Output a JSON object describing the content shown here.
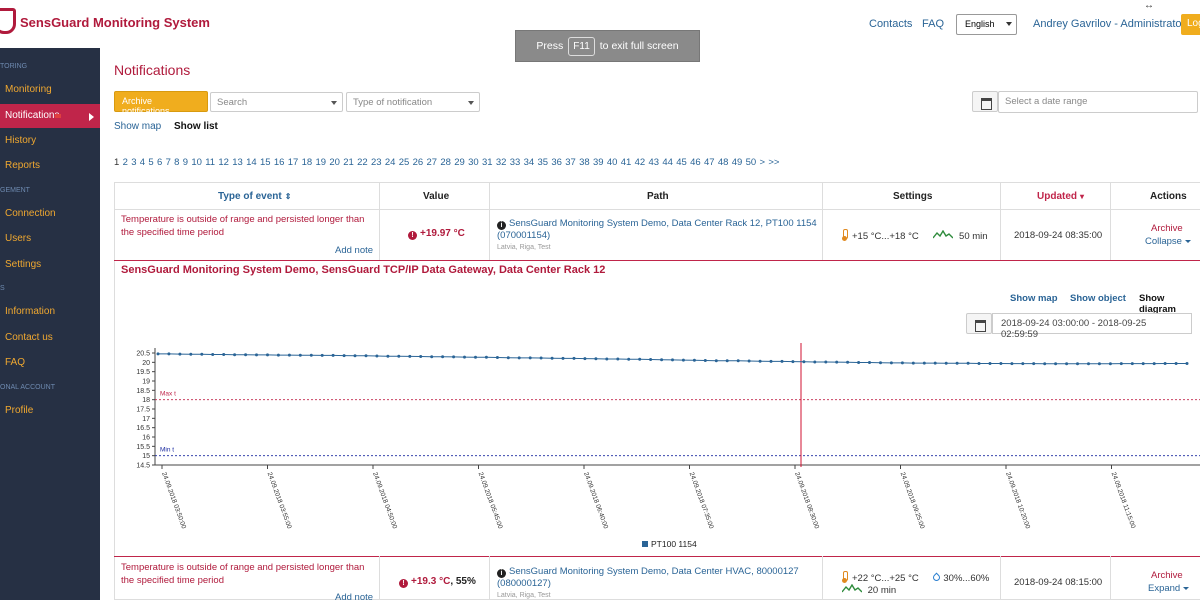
{
  "header": {
    "brand": "SensGuard Monitoring System",
    "contacts": "Contacts",
    "faq": "FAQ",
    "language": "English",
    "user": "Andrey Gavrilov - Administrator",
    "logout": "Log"
  },
  "fullscreen_toast": {
    "press": "Press",
    "key": "F11",
    "rest": "to exit full screen"
  },
  "sidebar": {
    "sections": [
      "TORING",
      "GEMENT",
      "S",
      "ONAL ACCOUNT"
    ],
    "items": [
      {
        "label": "Monitoring"
      },
      {
        "label": "Notifications"
      },
      {
        "label": "History"
      },
      {
        "label": "Reports"
      },
      {
        "label": "Connection"
      },
      {
        "label": "Users"
      },
      {
        "label": "Settings"
      },
      {
        "label": "Information"
      },
      {
        "label": "Contact us"
      },
      {
        "label": "FAQ"
      },
      {
        "label": "Profile"
      }
    ]
  },
  "page": {
    "title": "Notifications",
    "archive_button": "Archive notifications",
    "search_placeholder": "Search",
    "type_placeholder": "Type of notification",
    "date_placeholder": "Select a date range",
    "show_map": "Show map",
    "show_list": "Show list"
  },
  "pagination": {
    "pages": [
      "1",
      "2",
      "3",
      "4",
      "5",
      "6",
      "7",
      "8",
      "9",
      "10",
      "11",
      "12",
      "13",
      "14",
      "15",
      "16",
      "17",
      "18",
      "19",
      "20",
      "21",
      "22",
      "23",
      "24",
      "25",
      "26",
      "27",
      "28",
      "29",
      "30",
      "31",
      "32",
      "33",
      "34",
      "35",
      "36",
      "37",
      "38",
      "39",
      "40",
      "41",
      "42",
      "43",
      "44",
      "45",
      "46",
      "47",
      "48",
      "49",
      "50",
      ">",
      ">>"
    ],
    "current": "1"
  },
  "table": {
    "headers": {
      "type": "Type of event",
      "value": "Value",
      "path": "Path",
      "settings": "Settings",
      "updated": "Updated",
      "actions": "Actions"
    },
    "rows": [
      {
        "event_line1": "Temperature is outside of range and persisted longer than",
        "event_line2": "the specified time period",
        "add_note": "Add note",
        "value": "+19.97 °C",
        "path_line1": "SensGuard Monitoring System Demo, Data Center Rack 12, PT100 1154",
        "path_line2": "(070001154)",
        "location": "Latvia, Riga, Test",
        "temp_range": "+15 °C...+18 °C",
        "delay": "50 min",
        "updated": "2018-09-24 08:35:00",
        "archive": "Archive",
        "toggle": "Collapse"
      },
      {
        "event_line1": "Temperature is outside of range and persisted longer than",
        "event_line2": "the specified time period",
        "add_note": "Add note",
        "value": "+19.3 °C",
        "value_extra": ", 55%",
        "path_line1": "SensGuard Monitoring System Demo, Data Center HVAC, 80000127",
        "path_line2": "(080000127)",
        "location": "Latvia, Riga, Test",
        "temp_range": "+22 °C...+25 °C",
        "humidity_range": "30%...60%",
        "delay": "20 min",
        "updated": "2018-09-24 08:15:00",
        "archive": "Archive",
        "toggle": "Expand"
      }
    ]
  },
  "detail": {
    "title": "SensGuard Monitoring System Demo, SensGuard TCP/IP Data Gateway, Data Center Rack 12",
    "show_map": "Show map",
    "show_object": "Show object",
    "show_diagram": "Show diagram",
    "date_range": "2018-09-24 03:00:00 - 2018-09-25 02:59:59"
  },
  "colors": {
    "brand": "#b01a3c",
    "sidebar_bg": "#263044",
    "accent_orange": "#f0ad1e",
    "link_blue": "#2a6496",
    "series": "#2a6496",
    "max_line": "#c0254a",
    "min_line": "#1a2aa0"
  },
  "chart_data": {
    "type": "line",
    "ylim": [
      14.5,
      20.5
    ],
    "y_ticks": [
      "20.5",
      "20",
      "19.5",
      "19",
      "18.5",
      "18",
      "17.5",
      "17",
      "16.5",
      "16",
      "15.5",
      "15",
      "14.5"
    ],
    "x_ticks": [
      "24.09.2018 03:50:00",
      "24.09.2018 03:55:00",
      "24.09.2018 04:50:00",
      "24.09.2018 05:45:00",
      "24.09.2018 06:40:00",
      "24.09.2018 07:35:00",
      "24.09.2018 08:30:00",
      "24.09.2018 09:25:00",
      "24.09.2018 10:20:00",
      "24.09.2018 11:15:00"
    ],
    "series": [
      {
        "name": "PT100 1154",
        "values": [
          20.45,
          20.45,
          20.44,
          20.43,
          20.43,
          20.42,
          20.42,
          20.41,
          20.41,
          20.4,
          20.4,
          20.39,
          20.39,
          20.38,
          20.38,
          20.37,
          20.37,
          20.36,
          20.35,
          20.35,
          20.34,
          20.33,
          20.33,
          20.32,
          20.31,
          20.3,
          20.3,
          20.29,
          20.28,
          20.27,
          20.27,
          20.26,
          20.25,
          20.24,
          20.24,
          20.23,
          20.22,
          20.21,
          20.21,
          20.2,
          20.19,
          20.18,
          20.18,
          20.17,
          20.16,
          20.15,
          20.14,
          20.13,
          20.12,
          20.11,
          20.1,
          20.09,
          20.08,
          20.08,
          20.07,
          20.06,
          20.05,
          20.05,
          20.04,
          20.03,
          20.02,
          20.02,
          20.01,
          20.0,
          19.99,
          19.99,
          19.98,
          19.97,
          19.97,
          19.96,
          19.96,
          19.96,
          19.95,
          19.95,
          19.95,
          19.94,
          19.94,
          19.94,
          19.93,
          19.93,
          19.93,
          19.92,
          19.92,
          19.92,
          19.92,
          19.92,
          19.92,
          19.92,
          19.93,
          19.93,
          19.93,
          19.93,
          19.94,
          19.94,
          19.94
        ]
      }
    ],
    "max_label": "Max t",
    "min_label": "Min t",
    "max_value": 18,
    "min_value": 15,
    "legend": "PT100 1154"
  }
}
